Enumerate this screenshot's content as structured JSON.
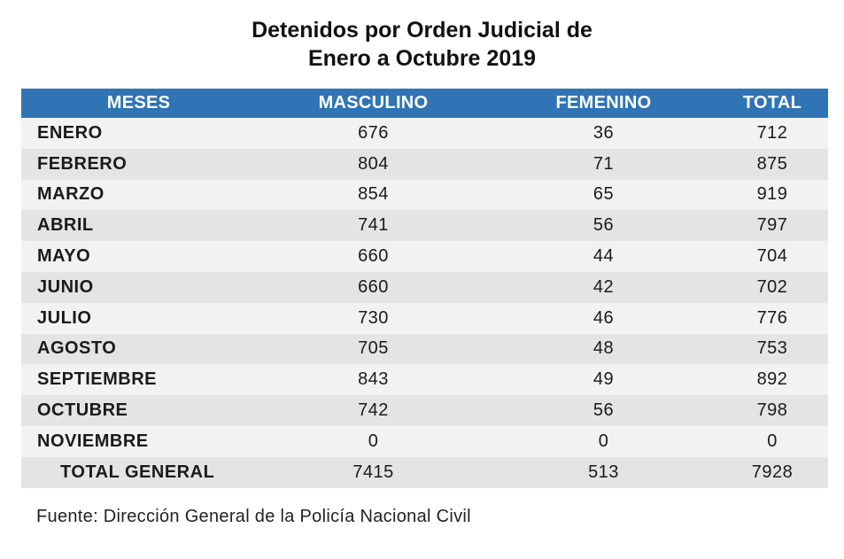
{
  "title": {
    "line1": "Detenidos por Orden Judicial de",
    "line2": "Enero a Octubre 2019"
  },
  "chart_data": {
    "type": "table",
    "title": "Detenidos por Orden Judicial de Enero a Octubre 2019",
    "columns": [
      "MESES",
      "MASCULINO",
      "FEMENINO",
      "TOTAL"
    ],
    "rows": [
      [
        "ENERO",
        "676",
        "36",
        "712"
      ],
      [
        "FEBRERO",
        "804",
        "71",
        "875"
      ],
      [
        "MARZO",
        "854",
        "65",
        "919"
      ],
      [
        "ABRIL",
        "741",
        "56",
        "797"
      ],
      [
        "MAYO",
        "660",
        "44",
        "704"
      ],
      [
        "JUNIO",
        "660",
        "42",
        "702"
      ],
      [
        "JULIO",
        "730",
        "46",
        "776"
      ],
      [
        "AGOSTO",
        "705",
        "48",
        "753"
      ],
      [
        "SEPTIEMBRE",
        "843",
        "49",
        "892"
      ],
      [
        "OCTUBRE",
        "742",
        "56",
        "798"
      ],
      [
        "NOVIEMBRE",
        "0",
        "0",
        "0"
      ]
    ],
    "total_row": [
      "TOTAL GENERAL",
      "7415",
      "513",
      "7928"
    ],
    "header_color": "#2f74b5"
  },
  "source": "Fuente: Dirección General de la Policía Nacional Civil"
}
